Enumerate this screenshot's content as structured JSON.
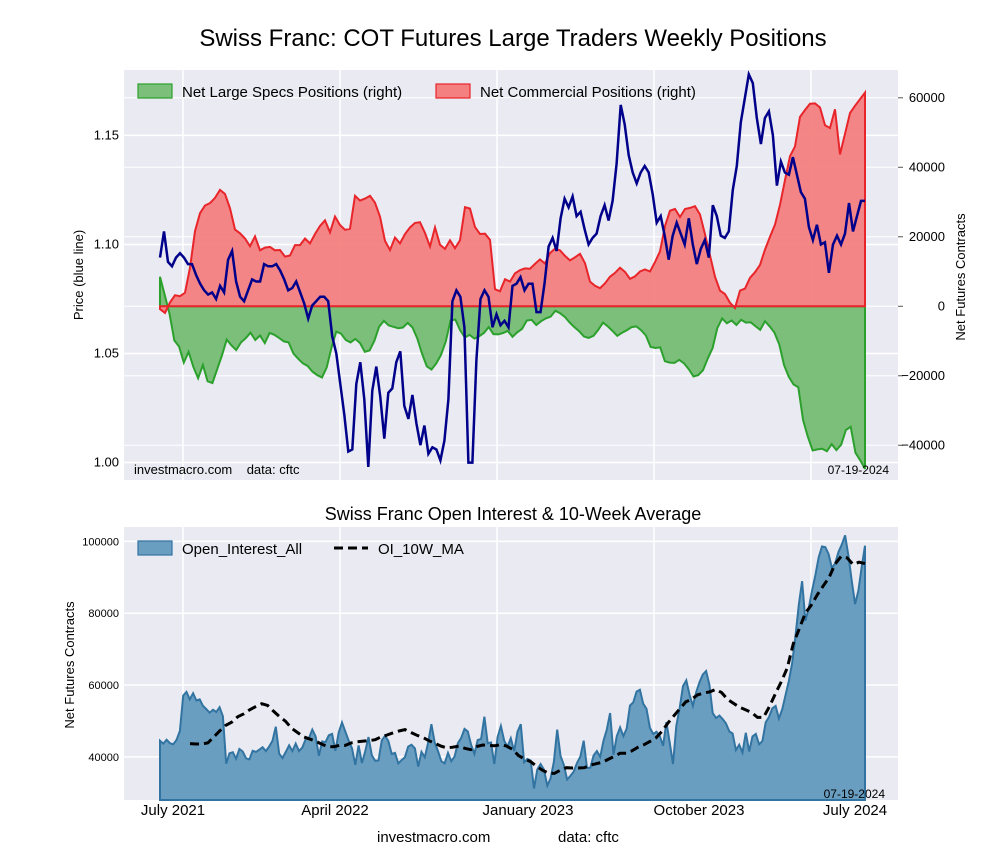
{
  "chart_data": [
    {
      "type": "area",
      "title": "Swiss Franc: COT Futures Large Traders Weekly Positions",
      "ylabel_left": "Price (blue line)",
      "ylabel_right": "Net Futures Contracts",
      "ylim_left": [
        0.992,
        1.18
      ],
      "ylim_right": [
        -50000,
        68000
      ],
      "yticks_left": [
        1.0,
        1.05,
        1.1,
        1.15
      ],
      "ytick_labels_left": [
        "1.00",
        "1.05",
        "1.10",
        "1.15"
      ],
      "yticks_right": [
        -40000,
        -20000,
        0,
        20000,
        40000,
        60000
      ],
      "ytick_labels_right": [
        "−40000",
        "−20000",
        "0",
        "20000",
        "40000",
        "60000"
      ],
      "legend": [
        "Net Large Specs Positions (right)",
        "Net Commercial Positions (right)"
      ],
      "watermark": "investmacro.com    data: cftc",
      "date": "07-19-2024",
      "series": [
        {
          "name": "Net Large Specs Positions (right)",
          "color": "#2ca02c",
          "fill": "#7bbf7b",
          "values": [
            8500,
            3200,
            -2100,
            -9800,
            -11600,
            -16200,
            -13100,
            -17400,
            -20700,
            -16900,
            -21600,
            -22100,
            -18100,
            -14200,
            -9600,
            -11300,
            -12600,
            -10400,
            -9200,
            -7600,
            -9700,
            -8400,
            -10600,
            -7700,
            -8200,
            -9100,
            -10100,
            -10400,
            -13600,
            -15100,
            -16400,
            -17200,
            -18800,
            -19800,
            -20500,
            -17600,
            -11900,
            -7300,
            -7900,
            -9700,
            -10400,
            -9400,
            -10600,
            -13100,
            -12700,
            -9900,
            -5900,
            -4200,
            -5500,
            -5900,
            -6300,
            -6100,
            -4800,
            -6100,
            -9200,
            -13600,
            -17300,
            -18200,
            -16400,
            -14000,
            -10100,
            -4100,
            -3800,
            -6900,
            -9000,
            -8200,
            -9300,
            -8600,
            -7700,
            -6000,
            -8000,
            -8100,
            -7700,
            -7100,
            -8800,
            -7500,
            -6500,
            -4100,
            -3900,
            -5400,
            -4300,
            -3500,
            -3000,
            -1300,
            -2000,
            -3100,
            -4700,
            -6000,
            -7200,
            -8700,
            -9100,
            -8500,
            -6800,
            -4700,
            -5800,
            -7100,
            -8500,
            -7600,
            -6900,
            -6000,
            -5800,
            -6900,
            -8400,
            -11700,
            -12000,
            -11800,
            -15800,
            -16200,
            -16300,
            -15400,
            -16400,
            -18100,
            -20200,
            -19800,
            -18400,
            -15000,
            -12000,
            -6300,
            -3500,
            -4900,
            -4100,
            -5400,
            -3900,
            -4700,
            -4600,
            -5700,
            -6800,
            -4300,
            -5800,
            -7600,
            -11000,
            -16900,
            -20300,
            -22500,
            -23300,
            -32800,
            -37500,
            -41500,
            -41200,
            -41000,
            -41700,
            -39700,
            -41400,
            -39800,
            -35600,
            -34700,
            -42200,
            -44300,
            -46800
          ]
        },
        {
          "name": "Net Commercial Positions (right)",
          "color": "#e8252a",
          "fill": "#f48080",
          "values": [
            -800,
            -1900,
            1100,
            3200,
            2900,
            3900,
            11100,
            21600,
            26800,
            29000,
            29700,
            31200,
            33500,
            32300,
            28200,
            22100,
            21000,
            19500,
            17300,
            20100,
            16100,
            16900,
            17100,
            16100,
            16200,
            14300,
            14600,
            17600,
            17600,
            19500,
            18100,
            20800,
            23100,
            24700,
            21300,
            25800,
            23400,
            22000,
            22300,
            31800,
            30400,
            31000,
            31800,
            29800,
            25800,
            18800,
            16200,
            19800,
            18100,
            20800,
            22700,
            24000,
            24200,
            21100,
            17200,
            22700,
            17700,
            16500,
            19000,
            16700,
            19000,
            28500,
            28100,
            22800,
            20800,
            20900,
            19100,
            4900,
            4300,
            7800,
            7100,
            9500,
            10400,
            10900,
            10800,
            12200,
            13500,
            12300,
            15300,
            16600,
            16100,
            14500,
            13200,
            14100,
            15100,
            12400,
            7100,
            5900,
            5200,
            6600,
            8500,
            9600,
            11100,
            9900,
            7900,
            8600,
            10000,
            10600,
            10000,
            12700,
            15800,
            23100,
            27500,
            28000,
            25700,
            28000,
            28300,
            28800,
            26400,
            20700,
            14600,
            8500,
            4500,
            3500,
            1000,
            -500,
            4500,
            5100,
            8200,
            9800,
            11900,
            16300,
            20000,
            23500,
            29200,
            36300,
            43200,
            46000,
            54500,
            56500,
            58300,
            58400,
            57200,
            52100,
            51300,
            56700,
            43700,
            49600,
            55600,
            57700,
            59600,
            61500
          ]
        },
        {
          "name": "Price (blue line)",
          "color": "#00008b",
          "values": [
            1.094,
            1.106,
            1.092,
            1.09,
            1.094,
            1.096,
            1.094,
            1.091,
            1.091,
            1.086,
            1.082,
            1.079,
            1.077,
            1.078,
            1.075,
            1.081,
            1.078,
            1.093,
            1.097,
            1.083,
            1.076,
            1.074,
            1.079,
            1.084,
            1.083,
            1.083,
            1.091,
            1.09,
            1.09,
            1.091,
            1.088,
            1.084,
            1.079,
            1.08,
            1.083,
            1.078,
            1.073,
            1.066,
            1.072,
            1.074,
            1.076,
            1.076,
            1.074,
            1.058,
            1.05,
            1.036,
            1.022,
            1.005,
            1.006,
            1.036,
            1.046,
            1.029,
            0.998,
            1.033,
            1.044,
            1.03,
            1.011,
            1.032,
            1.034,
            1.046,
            1.051,
            1.026,
            1.02,
            1.031,
            1.018,
            1.008,
            1.017,
            1.004,
            1.007,
            1.006,
            1.001,
            1.01,
            1.029,
            1.074,
            1.079,
            1.076,
            1.062,
            1.0,
            1.0,
            1.047,
            1.075,
            1.079,
            1.076,
            1.062,
            1.068,
            1.063,
            1.065,
            1.062,
            1.081,
            1.082,
            1.085,
            1.079,
            1.082,
            1.082,
            1.069,
            1.069,
            1.082,
            1.099,
            1.103,
            1.097,
            1.112,
            1.121,
            1.117,
            1.122,
            1.113,
            1.115,
            1.107,
            1.1,
            1.103,
            1.105,
            1.113,
            1.118,
            1.111,
            1.12,
            1.137,
            1.164,
            1.155,
            1.141,
            1.133,
            1.128,
            1.133,
            1.136,
            1.133,
            1.123,
            1.11,
            1.113,
            1.104,
            1.093,
            1.104,
            1.11,
            1.105,
            1.1,
            1.112,
            1.1,
            1.091,
            1.098,
            1.102,
            1.094,
            1.118,
            1.113,
            1.104,
            1.103,
            1.106,
            1.125,
            1.136,
            1.156,
            1.167,
            1.178,
            1.174,
            1.158,
            1.146,
            1.158,
            1.161,
            1.15,
            1.127,
            1.138,
            1.133,
            1.132,
            1.14,
            1.132,
            1.124,
            1.121,
            1.108,
            1.102,
            1.109,
            1.1,
            1.101,
            1.087,
            1.1,
            1.104,
            1.1,
            1.105,
            1.119,
            1.106,
            1.113,
            1.12,
            1.12
          ]
        }
      ]
    },
    {
      "type": "area",
      "title": "Swiss Franc Open Interest & 10-Week Average",
      "ylabel": "Net Futures Contracts",
      "ylim": [
        28000,
        104000
      ],
      "yticks": [
        40000,
        60000,
        80000,
        100000
      ],
      "ytick_labels": [
        "40000",
        "60000",
        "80000",
        "100000"
      ],
      "legend": [
        "Open_Interest_All",
        "OI_10W_MA"
      ],
      "date": "07-19-2024",
      "x_axis_labels": [
        "July 2021",
        "April 2022",
        "January 2023",
        "October 2023",
        "July 2024"
      ],
      "series": [
        {
          "name": "Open_Interest_All",
          "color": "#3274a1",
          "fill": "#6a9ec1",
          "values": [
            44500,
            43700,
            44800,
            43800,
            43500,
            44700,
            47200,
            57100,
            58100,
            56000,
            57700,
            55700,
            56000,
            54200,
            53300,
            52300,
            53100,
            52500,
            53800,
            51300,
            38100,
            41000,
            41300,
            39500,
            42200,
            41500,
            39600,
            39300,
            41700,
            41400,
            42000,
            42700,
            41600,
            42900,
            44500,
            48400,
            40900,
            39700,
            41400,
            43200,
            41600,
            43700,
            41600,
            42600,
            44900,
            45200,
            47600,
            45700,
            40300,
            44300,
            44100,
            46000,
            46400,
            41700,
            46800,
            49600,
            47000,
            44500,
            42400,
            37800,
            43200,
            38300,
            41500,
            45500,
            40500,
            38900,
            39000,
            44600,
            45900,
            44400,
            40800,
            41100,
            38200,
            39100,
            39900,
            42900,
            43400,
            42400,
            37300,
            41400,
            39900,
            43900,
            49100,
            44000,
            41600,
            38800,
            38200,
            41100,
            38800,
            40100,
            43800,
            45300,
            47800,
            47100,
            43400,
            40800,
            44700,
            45000,
            51200,
            43800,
            44000,
            38000,
            45500,
            48600,
            44500,
            42800,
            45200,
            41600,
            47000,
            49100,
            38500,
            39400,
            39000,
            31200,
            36500,
            38000,
            36500,
            32000,
            34000,
            38700,
            47600,
            40300,
            37800,
            33700,
            34700,
            35900,
            38300,
            40100,
            44500,
            36900,
            37000,
            40400,
            41600,
            40000,
            44500,
            47600,
            52200,
            40600,
            45800,
            48200,
            45800,
            47900,
            54300,
            55200,
            58200,
            58700,
            54800,
            53400,
            48100,
            46400,
            47000,
            45800,
            43100,
            49700,
            44000,
            38000,
            48600,
            53500,
            59700,
            61300,
            57200,
            54200,
            58000,
            60800,
            62900,
            63900,
            60100,
            52200,
            50800,
            51500,
            50500,
            49300,
            47100,
            46500,
            41900,
            43400,
            41200,
            46700,
            41500,
            45700,
            46400,
            43500,
            44400,
            49600,
            51100,
            53500,
            54200,
            50700,
            53300,
            57300,
            61200,
            66200,
            73700,
            82300,
            88900,
            77900,
            81400,
            86200,
            90600,
            95600,
            98600,
            98400,
            96500,
            92600,
            93900,
            97100,
            99100,
            101700,
            95900,
            88900,
            82500,
            86300,
            92900,
            98800
          ]
        },
        {
          "name": "OI_10W_MA",
          "color": "#000000",
          "dash": true,
          "values": [
            43700,
            43600,
            43600,
            43900,
            45600,
            47300,
            48800,
            49700,
            51200,
            52000,
            53100,
            54000,
            54800,
            54300,
            52700,
            51200,
            49900,
            48000,
            46800,
            45600,
            45000,
            44400,
            43600,
            42900,
            42800,
            43200,
            43200,
            43900,
            44200,
            44400,
            44500,
            44800,
            45600,
            46100,
            46700,
            47200,
            47600,
            46800,
            46000,
            45400,
            44500,
            43800,
            43000,
            42500,
            42700,
            43000,
            42400,
            42000,
            42900,
            43300,
            43200,
            43100,
            43400,
            43000,
            42100,
            40400,
            39400,
            38700,
            37400,
            36300,
            35500,
            35400,
            36300,
            37000,
            36900,
            36900,
            37000,
            37700,
            38100,
            38500,
            39300,
            40100,
            41000,
            41000,
            41700,
            42700,
            43400,
            44300,
            45300,
            47100,
            49400,
            51400,
            53400,
            55300,
            56100,
            57300,
            57800,
            58100,
            58800,
            57900,
            56000,
            54900,
            53800,
            53100,
            52400,
            51000,
            51000,
            54000,
            57600,
            61000,
            64800,
            71500,
            75700,
            80000,
            82200,
            85100,
            87600,
            90000,
            93700,
            95800,
            95400,
            93600,
            94200,
            93800
          ]
        }
      ]
    }
  ],
  "footer": {
    "left": "investmacro.com",
    "right": "data: cftc"
  }
}
